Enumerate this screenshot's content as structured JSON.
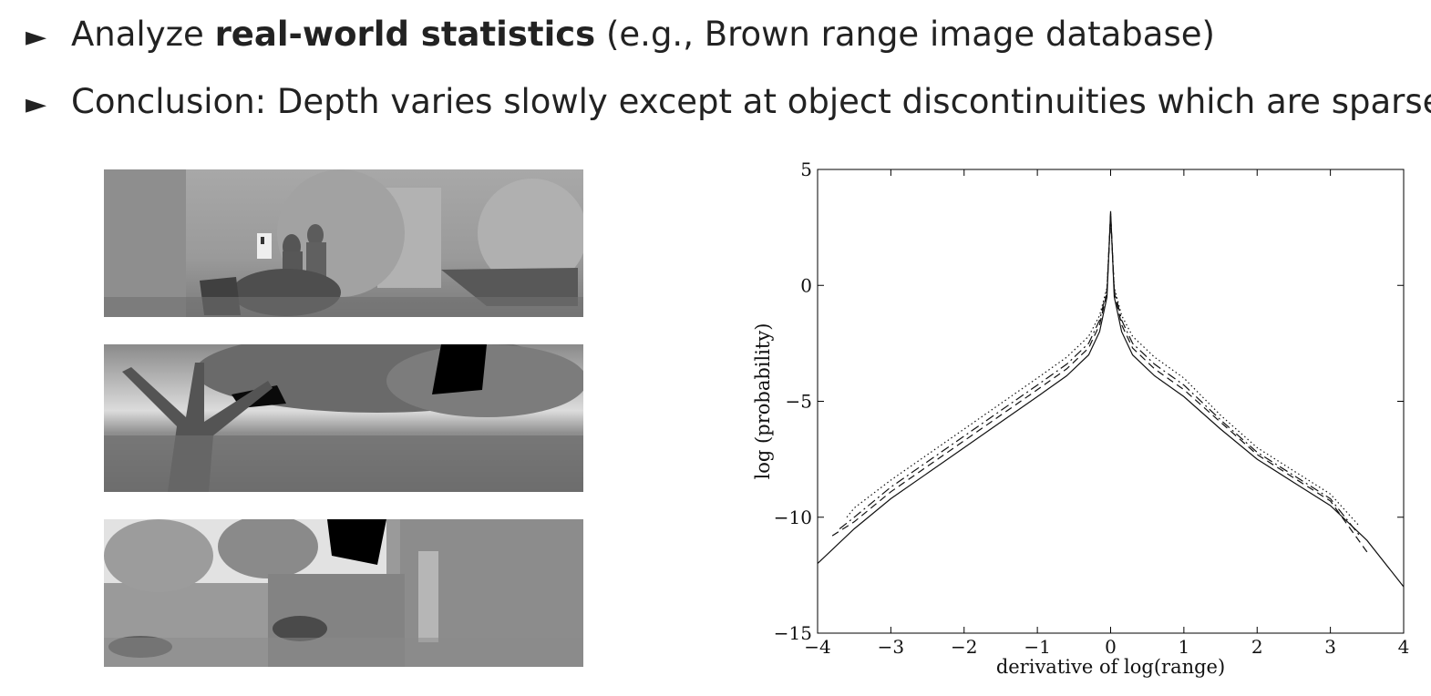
{
  "bullets": [
    {
      "before": "Analyze ",
      "bold": "real-world statistics",
      "after": "   (e.g., Brown range image database)"
    },
    {
      "before": "Conclusion: Depth varies slowly except at object discontinuities which are sparse",
      "bold": "",
      "after": ""
    }
  ],
  "depth_images": [
    {
      "scene": "indoor-office"
    },
    {
      "scene": "outdoor-tree"
    },
    {
      "scene": "outdoor-courtyard"
    }
  ],
  "chart_data": {
    "type": "line",
    "xlabel": "derivative of log(range)",
    "ylabel": "log (probability)",
    "xlim": [
      -4,
      4
    ],
    "ylim": [
      -15,
      5
    ],
    "xticks": [
      -4,
      -3,
      -2,
      -1,
      0,
      1,
      2,
      3,
      4
    ],
    "yticks": [
      -15,
      -10,
      -5,
      0,
      5
    ],
    "xtick_labels": [
      "−4",
      "−3",
      "−2",
      "−1",
      "0",
      "1",
      "2",
      "3",
      "4"
    ],
    "ytick_labels": [
      "−15",
      "−10",
      "−5",
      "0",
      "5"
    ],
    "grid": false,
    "series": [
      {
        "style": "solid",
        "x": [
          -4,
          -3.5,
          -3,
          -2.5,
          -2,
          -1.5,
          -1,
          -0.6,
          -0.3,
          -0.15,
          -0.05,
          0,
          0.05,
          0.15,
          0.3,
          0.6,
          1,
          1.5,
          2,
          2.5,
          3,
          3.5,
          4
        ],
        "y": [
          -12,
          -10.5,
          -9.2,
          -8.1,
          -7.0,
          -5.9,
          -4.8,
          -3.9,
          -3.0,
          -2.0,
          -0.5,
          3.2,
          -0.5,
          -2.0,
          -3.0,
          -3.9,
          -4.8,
          -6.2,
          -7.5,
          -8.5,
          -9.5,
          -11.0,
          -13.0
        ]
      },
      {
        "style": "dashed",
        "x": [
          -3.8,
          -3.5,
          -3,
          -2.5,
          -2,
          -1.5,
          -1,
          -0.6,
          -0.3,
          -0.15,
          -0.05,
          0,
          0.05,
          0.15,
          0.3,
          0.6,
          1,
          1.5,
          2,
          2.5,
          3,
          3.5
        ],
        "y": [
          -10.8,
          -10.2,
          -8.9,
          -7.8,
          -6.7,
          -5.6,
          -4.5,
          -3.6,
          -2.7,
          -1.7,
          -0.3,
          3.1,
          -0.3,
          -1.7,
          -2.7,
          -3.6,
          -4.5,
          -5.9,
          -7.3,
          -8.3,
          -9.3,
          -11.5
        ]
      },
      {
        "style": "dashdot",
        "x": [
          -3.7,
          -3.5,
          -3,
          -2.5,
          -2,
          -1.5,
          -1,
          -0.6,
          -0.3,
          -0.15,
          -0.05,
          0,
          0.05,
          0.15,
          0.3,
          0.6,
          1,
          1.5,
          2,
          2.5,
          3,
          3.4
        ],
        "y": [
          -10.5,
          -10.0,
          -8.7,
          -7.6,
          -6.5,
          -5.4,
          -4.3,
          -3.4,
          -2.5,
          -1.5,
          -0.2,
          3.0,
          -0.2,
          -1.5,
          -2.5,
          -3.4,
          -4.3,
          -5.8,
          -7.2,
          -8.2,
          -9.2,
          -10.8
        ]
      },
      {
        "style": "dotted",
        "x": [
          -3.6,
          -3.5,
          -3,
          -2.5,
          -2,
          -1.5,
          -1,
          -0.6,
          -0.3,
          -0.15,
          -0.05,
          0,
          0.05,
          0.15,
          0.3,
          0.6,
          1,
          1.5,
          2,
          2.5,
          3,
          3.4
        ],
        "y": [
          -10.0,
          -9.6,
          -8.4,
          -7.3,
          -6.2,
          -5.1,
          -4.0,
          -3.1,
          -2.2,
          -1.3,
          -0.1,
          2.9,
          -0.1,
          -1.3,
          -2.2,
          -3.1,
          -4.0,
          -5.6,
          -7.0,
          -8.0,
          -9.0,
          -10.4
        ]
      }
    ]
  }
}
